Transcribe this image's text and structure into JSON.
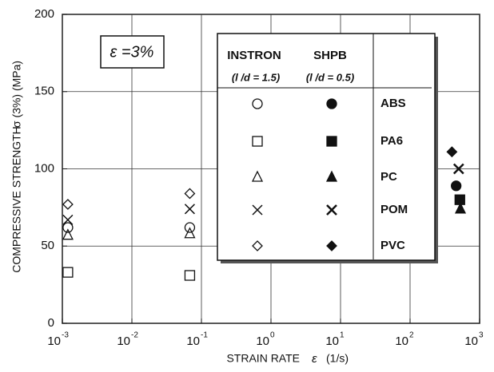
{
  "chart_data": {
    "type": "scatter",
    "x_label": "STRAIN RATE",
    "x_label_symbol": "ε",
    "x_label_unit": "(1/s)",
    "y_label": "COMPRESSIVE STRENGTH",
    "y_label_symbol": "σ (3%) (MPa)",
    "annotation": "ε =3%",
    "xscale": "log",
    "xlim": [
      0.001,
      1000
    ],
    "xticks": [
      {
        "value": 0.001,
        "label": "10",
        "exponent": "-3"
      },
      {
        "value": 0.01,
        "label": "10",
        "exponent": "-2"
      },
      {
        "value": 0.1,
        "label": "10",
        "exponent": "-1"
      },
      {
        "value": 1,
        "label": "10",
        "exponent": "0"
      },
      {
        "value": 10,
        "label": "10",
        "exponent": "1"
      },
      {
        "value": 100,
        "label": "10",
        "exponent": "2"
      },
      {
        "value": 1000,
        "label": "10",
        "exponent": "3"
      }
    ],
    "ylim": [
      0,
      200
    ],
    "yticks": [
      0,
      50,
      100,
      150,
      200
    ],
    "grid": true,
    "legend": {
      "headers": [
        "INSTRON",
        "SHPB"
      ],
      "subheaders": [
        "(l /d = 1.5)",
        "(l /d = 0.5)"
      ]
    },
    "series": [
      {
        "name": "ABS",
        "marker": "circle",
        "instron_x": [
          0.0012,
          0.068
        ],
        "instron_values": [
          62,
          62
        ],
        "shpb_x": [
          460
        ],
        "shpb_values": [
          89
        ]
      },
      {
        "name": "PA6",
        "marker": "square",
        "instron_x": [
          0.0012,
          0.068
        ],
        "instron_values": [
          33,
          31
        ],
        "shpb_x": [
          520
        ],
        "shpb_values": [
          80
        ]
      },
      {
        "name": "PC",
        "marker": "triangle",
        "instron_x": [
          0.0012,
          0.068
        ],
        "instron_values": [
          57,
          58
        ],
        "shpb_x": [
          530
        ],
        "shpb_values": [
          74
        ]
      },
      {
        "name": "POM",
        "marker": "x",
        "instron_x": [
          0.0012,
          0.068
        ],
        "instron_values": [
          67,
          74
        ],
        "shpb_x": [
          500
        ],
        "shpb_values": [
          100
        ]
      },
      {
        "name": "PVC",
        "marker": "diamond",
        "instron_x": [
          0.0012,
          0.068
        ],
        "instron_values": [
          77,
          84
        ],
        "shpb_x": [
          400
        ],
        "shpb_values": [
          111
        ]
      }
    ]
  }
}
